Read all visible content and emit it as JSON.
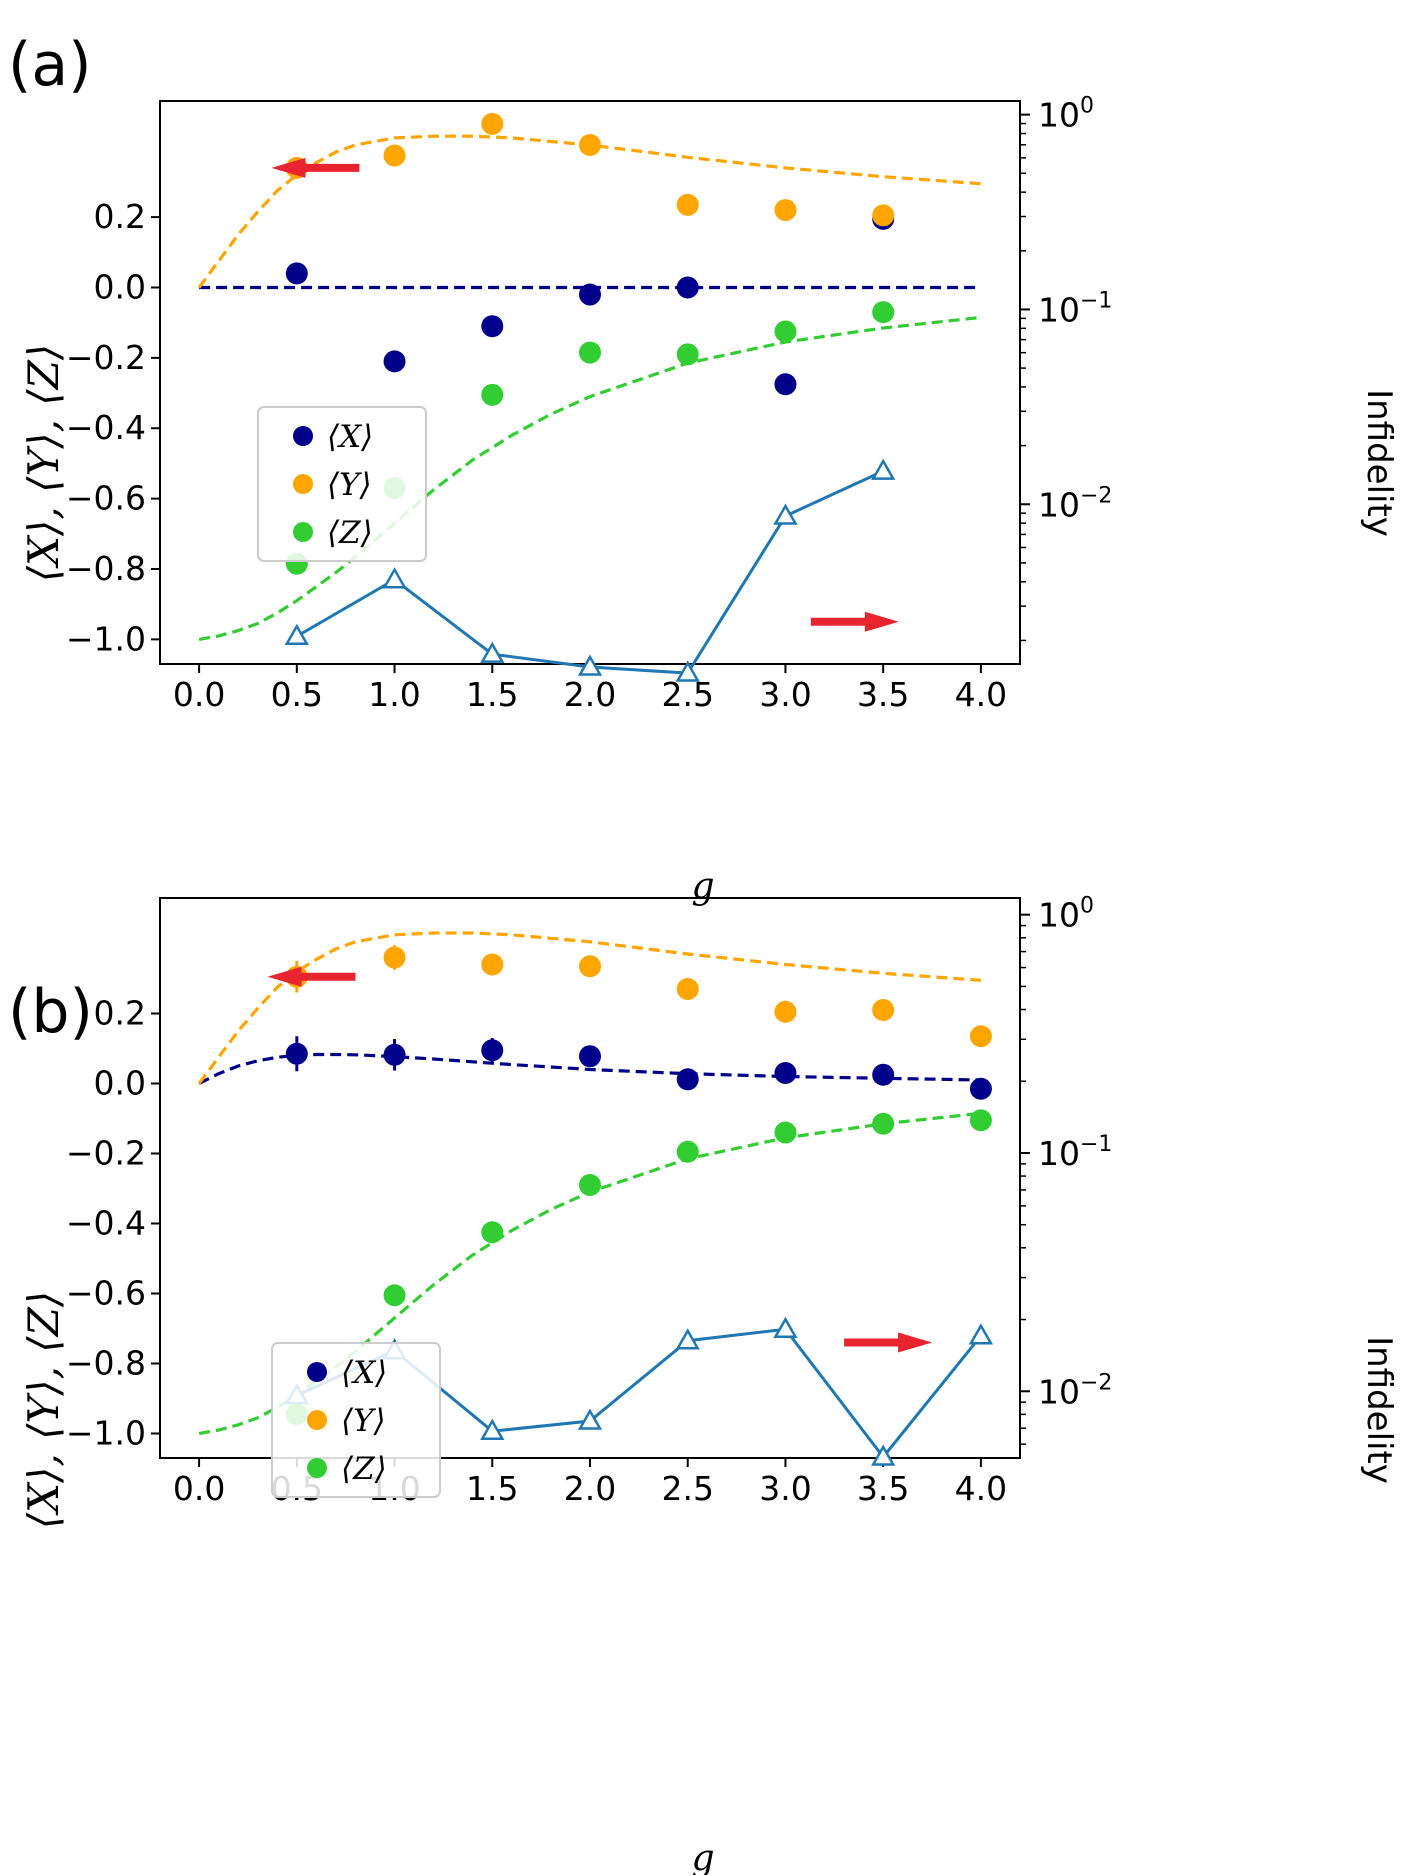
{
  "colors": {
    "X": "#00008B",
    "Y": "#FFA500",
    "Z": "#32CD32",
    "infidelity": "#1F77B4",
    "arrow": "#E8242F"
  },
  "chart_data": [
    {
      "type": "scatter",
      "panel": "(a)",
      "xlabel": "g",
      "ylabel": "⟨X⟩, ⟨Y⟩, ⟨Z⟩",
      "y2label": "Infidelity",
      "xlim": [
        -0.2,
        4.2
      ],
      "ylim": [
        -1.07,
        0.53
      ],
      "y2lim_log10": [
        -2.82,
        0.07
      ],
      "xticks": [
        "0.0",
        "0.5",
        "1.0",
        "1.5",
        "2.0",
        "2.5",
        "3.0",
        "3.5",
        "4.0"
      ],
      "yticks": [
        "0.2",
        "0.0",
        "−0.2",
        "−0.4",
        "−0.6",
        "−0.8",
        "−1.0"
      ],
      "y2ticks": [
        {
          "base": "10",
          "exp": "0"
        },
        {
          "base": "10",
          "exp": "−1"
        },
        {
          "base": "10",
          "exp": "−2"
        }
      ],
      "legend": [
        "⟨X⟩",
        "⟨Y⟩",
        "⟨Z⟩"
      ],
      "legend_location": "center-left",
      "x": [
        0.5,
        1.0,
        1.5,
        2.0,
        2.5,
        3.0,
        3.5
      ],
      "series": [
        {
          "name": "⟨X⟩",
          "values": [
            0.04,
            -0.21,
            -0.11,
            -0.02,
            0.0,
            -0.275,
            0.195
          ]
        },
        {
          "name": "⟨Y⟩",
          "values": [
            0.34,
            0.375,
            0.465,
            0.405,
            0.235,
            0.22,
            0.205
          ]
        },
        {
          "name": "⟨Z⟩",
          "values": [
            -0.785,
            -0.57,
            -0.305,
            -0.185,
            -0.19,
            -0.125,
            -0.07
          ]
        }
      ],
      "theory": {
        "x": [
          0.0,
          0.1,
          0.2,
          0.3,
          0.4,
          0.5,
          0.6,
          0.7,
          0.8,
          1.0,
          1.2,
          1.4,
          1.6,
          1.8,
          2.0,
          2.5,
          3.0,
          3.5,
          4.0
        ],
        "X": [
          0,
          0,
          0,
          0,
          0,
          0,
          0,
          0,
          0,
          0,
          0,
          0,
          0,
          0,
          0,
          0,
          0,
          0,
          0
        ],
        "Y": [
          0.0,
          0.075,
          0.15,
          0.215,
          0.275,
          0.32,
          0.355,
          0.385,
          0.405,
          0.425,
          0.43,
          0.43,
          0.425,
          0.415,
          0.405,
          0.37,
          0.34,
          0.315,
          0.295
        ],
        "Z": [
          -1.0,
          -0.99,
          -0.975,
          -0.955,
          -0.925,
          -0.89,
          -0.85,
          -0.81,
          -0.765,
          -0.67,
          -0.575,
          -0.49,
          -0.42,
          -0.36,
          -0.31,
          -0.215,
          -0.155,
          -0.115,
          -0.085
        ]
      },
      "infidelity": {
        "x": [
          0.5,
          1.0,
          1.5,
          2.0,
          2.5,
          3.0,
          3.5
        ],
        "values": [
          0.0021,
          0.0041,
          0.0017,
          0.00146,
          0.00136,
          0.0087,
          0.0148
        ]
      },
      "arrows": [
        {
          "direction": "left",
          "points_to": "left axis",
          "at": [
            0.37,
            0.34
          ]
        },
        {
          "direction": "right",
          "points_to": "right axis",
          "at": [
            3.13,
            -0.95
          ]
        }
      ]
    },
    {
      "type": "scatter",
      "panel": "(b)",
      "xlabel": "g",
      "ylabel": "⟨X⟩, ⟨Y⟩, ⟨Z⟩",
      "y2label": "Infidelity",
      "xlim": [
        -0.2,
        4.2
      ],
      "ylim": [
        -1.07,
        0.53
      ],
      "y2lim_log10": [
        -2.28,
        0.07
      ],
      "xticks": [
        "0.0",
        "0.5",
        "1.0",
        "1.5",
        "2.0",
        "2.5",
        "3.0",
        "3.5",
        "4.0"
      ],
      "yticks": [
        "0.2",
        "0.0",
        "−0.2",
        "−0.4",
        "−0.6",
        "−0.8",
        "−1.0"
      ],
      "y2ticks": [
        {
          "base": "10",
          "exp": "0"
        },
        {
          "base": "10",
          "exp": "−1"
        },
        {
          "base": "10",
          "exp": "−2"
        }
      ],
      "legend": [
        "⟨X⟩",
        "⟨Y⟩",
        "⟨Z⟩"
      ],
      "legend_location": "center-left",
      "x": [
        0.5,
        1.0,
        1.5,
        2.0,
        2.5,
        3.0,
        3.5,
        4.0
      ],
      "series": [
        {
          "name": "⟨X⟩",
          "values": [
            0.085,
            0.082,
            0.095,
            0.078,
            0.012,
            0.03,
            0.025,
            -0.015
          ],
          "errors": [
            0.05,
            0.045,
            0.035,
            0.025,
            0.01,
            0.01,
            0.01,
            0.01
          ]
        },
        {
          "name": "⟨Y⟩",
          "values": [
            0.305,
            0.36,
            0.34,
            0.335,
            0.27,
            0.205,
            0.21,
            0.135
          ],
          "errors": [
            0.045,
            0.035,
            0.01,
            0.01,
            0.01,
            0.01,
            0.01,
            0.01
          ]
        },
        {
          "name": "⟨Z⟩",
          "values": [
            -0.945,
            -0.605,
            -0.425,
            -0.29,
            -0.195,
            -0.14,
            -0.115,
            -0.105
          ],
          "errors": [
            0.01,
            0.01,
            0.01,
            0.01,
            0.01,
            0.01,
            0.01,
            0.01
          ]
        }
      ],
      "theory": {
        "x": [
          0.0,
          0.1,
          0.2,
          0.3,
          0.4,
          0.5,
          0.6,
          0.7,
          0.8,
          1.0,
          1.2,
          1.4,
          1.6,
          1.8,
          2.0,
          2.5,
          3.0,
          3.5,
          4.0
        ],
        "X": [
          0.0,
          0.028,
          0.05,
          0.065,
          0.075,
          0.081,
          0.083,
          0.083,
          0.082,
          0.077,
          0.07,
          0.062,
          0.054,
          0.047,
          0.04,
          0.028,
          0.02,
          0.015,
          0.01
        ],
        "Y": [
          0.0,
          0.075,
          0.15,
          0.215,
          0.275,
          0.32,
          0.355,
          0.385,
          0.405,
          0.425,
          0.43,
          0.43,
          0.425,
          0.415,
          0.405,
          0.37,
          0.34,
          0.315,
          0.295
        ],
        "Z": [
          -1.0,
          -0.99,
          -0.975,
          -0.955,
          -0.925,
          -0.89,
          -0.85,
          -0.81,
          -0.765,
          -0.67,
          -0.575,
          -0.49,
          -0.42,
          -0.36,
          -0.31,
          -0.215,
          -0.155,
          -0.115,
          -0.085
        ]
      },
      "infidelity": {
        "x": [
          0.5,
          1.0,
          1.5,
          2.0,
          2.5,
          3.0,
          3.5,
          4.0
        ],
        "values": [
          0.0096,
          0.0148,
          0.0068,
          0.0075,
          0.0163,
          0.0182,
          0.0053,
          0.0171
        ]
      },
      "arrows": [
        {
          "direction": "left",
          "points_to": "left axis",
          "at": [
            0.35,
            0.305
          ]
        },
        {
          "direction": "right",
          "points_to": "right axis",
          "at": [
            3.3,
            -0.74
          ]
        }
      ]
    }
  ]
}
